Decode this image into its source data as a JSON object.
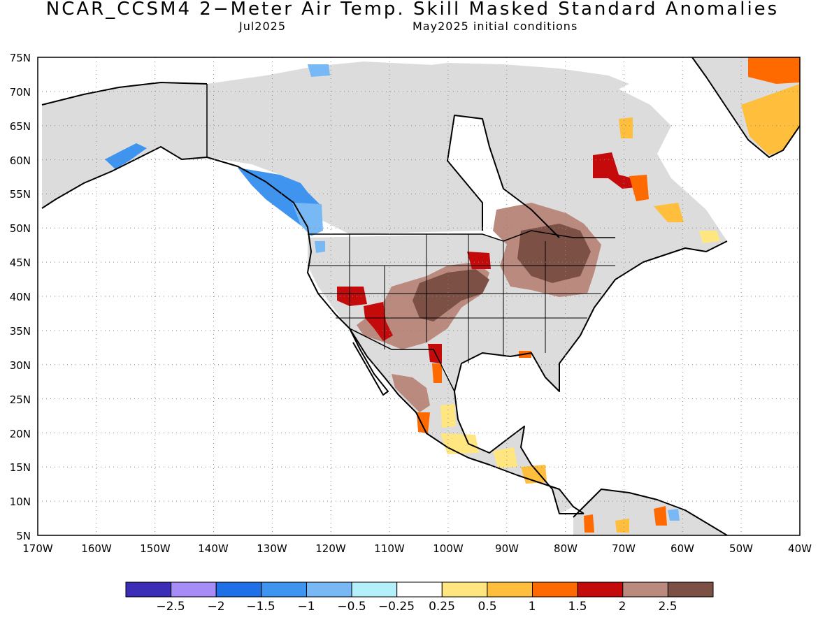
{
  "title": "NCAR_CCSM4 2−Meter Air Temp. Skill Masked Standard Anomalies",
  "valid_month": "Jul2025",
  "initial_conditions": "May2025 initial conditions",
  "lat_labels": [
    "75N",
    "70N",
    "65N",
    "60N",
    "55N",
    "50N",
    "45N",
    "40N",
    "35N",
    "30N",
    "25N",
    "20N",
    "15N",
    "10N",
    "5N"
  ],
  "lon_labels": [
    "170W",
    "160W",
    "150W",
    "140W",
    "130W",
    "120W",
    "110W",
    "100W",
    "90W",
    "80W",
    "70W",
    "60W",
    "50W",
    "40W"
  ],
  "colorbar": {
    "labels": [
      "−2.5",
      "−2",
      "−1.5",
      "−1",
      "−0.5",
      "−0.25",
      "0.25",
      "0.5",
      "1",
      "1.5",
      "2",
      "2.5"
    ],
    "colors": [
      "#3b2db5",
      "#a58cf7",
      "#1f6fe6",
      "#3e94ef",
      "#78b9f5",
      "#b4f0fa",
      "#ffffff",
      "#ffe680",
      "#ffbe3c",
      "#ff6a00",
      "#c40a0a",
      "#b98a7d",
      "#7d5046"
    ]
  },
  "mask_color": "#dcdcdc"
}
